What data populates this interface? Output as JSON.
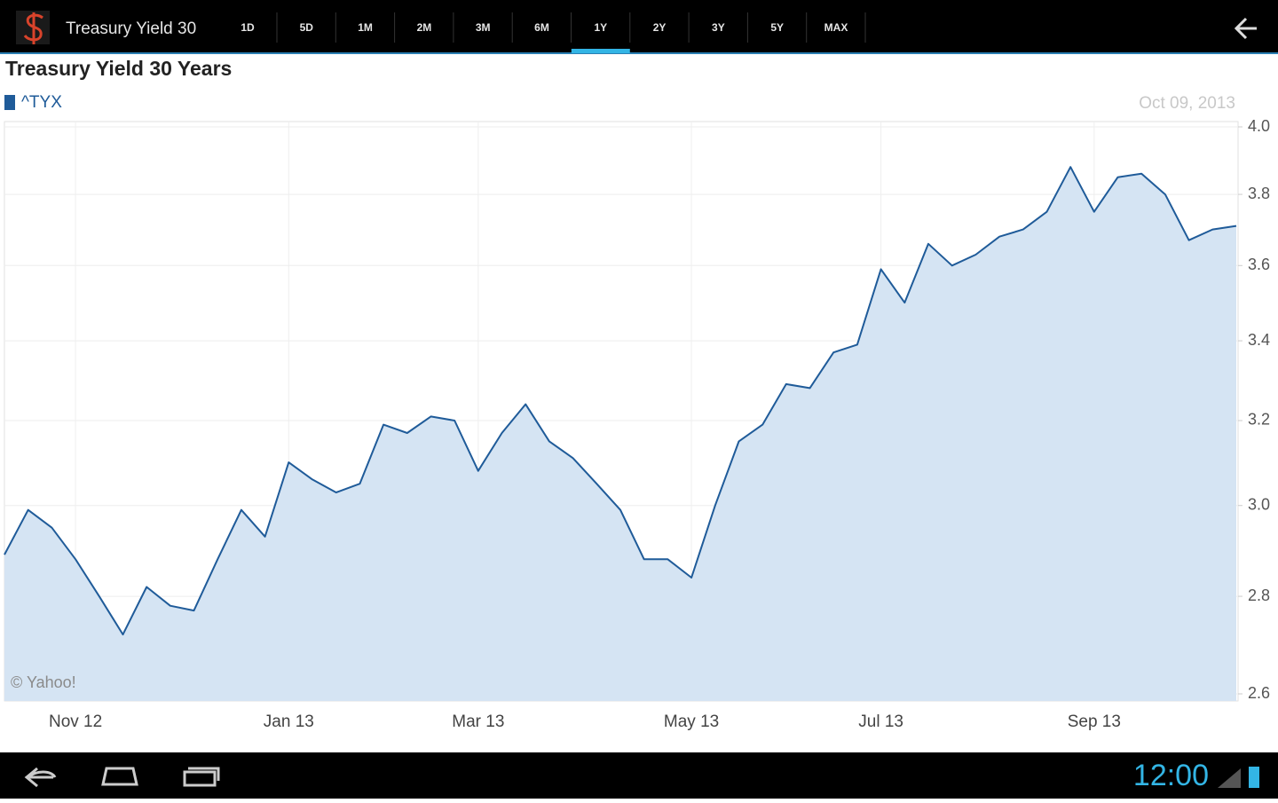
{
  "app_bar": {
    "title": "Treasury Yield 30",
    "ranges": [
      "1D",
      "5D",
      "1M",
      "2M",
      "3M",
      "6M",
      "1Y",
      "2Y",
      "3Y",
      "5Y",
      "MAX"
    ],
    "selected": "1Y"
  },
  "status_bar": {
    "time": "12:00"
  },
  "chart_data": {
    "type": "area",
    "title": "Treasury Yield 30 Years",
    "date_label": "Oct 09, 2013",
    "annotation": "© Yahoo!",
    "categories": [
      null,
      null,
      null,
      "Nov 12",
      null,
      null,
      null,
      null,
      null,
      null,
      null,
      null,
      "Jan 13",
      null,
      null,
      null,
      null,
      null,
      null,
      null,
      "Mar 13",
      null,
      null,
      null,
      null,
      null,
      null,
      null,
      null,
      "May 13",
      null,
      null,
      null,
      null,
      null,
      null,
      null,
      "Jul 13",
      null,
      null,
      null,
      null,
      null,
      null,
      null,
      null,
      "Sep 13",
      null,
      null,
      null,
      null,
      null,
      null
    ],
    "series": [
      {
        "name": "^TYX",
        "color": "#1f5b99",
        "fill_color": "#d5e4f3",
        "values": [
          2.89,
          2.99,
          2.95,
          2.88,
          2.8,
          2.72,
          2.82,
          2.78,
          2.77,
          2.88,
          2.99,
          2.93,
          3.1,
          3.06,
          3.03,
          3.05,
          3.19,
          3.17,
          3.21,
          3.2,
          3.08,
          3.17,
          3.24,
          3.15,
          3.11,
          3.05,
          2.99,
          2.88,
          2.88,
          2.84,
          3.0,
          3.15,
          3.19,
          3.29,
          3.28,
          3.37,
          3.39,
          3.59,
          3.5,
          3.66,
          3.6,
          3.63,
          3.68,
          3.7,
          3.75,
          3.88,
          3.75,
          3.85,
          3.86,
          3.8,
          3.67,
          3.7,
          3.71
        ]
      }
    ],
    "ylim": [
      2.6,
      4.0
    ],
    "yticks": [
      2.6,
      2.8,
      {
        "value": 3.0,
        "label": "3.0"
      },
      3.2,
      3.4,
      3.6,
      3.8,
      {
        "value": 4.0,
        "label": "4.0"
      }
    ],
    "log_scale": true,
    "grid": true
  }
}
